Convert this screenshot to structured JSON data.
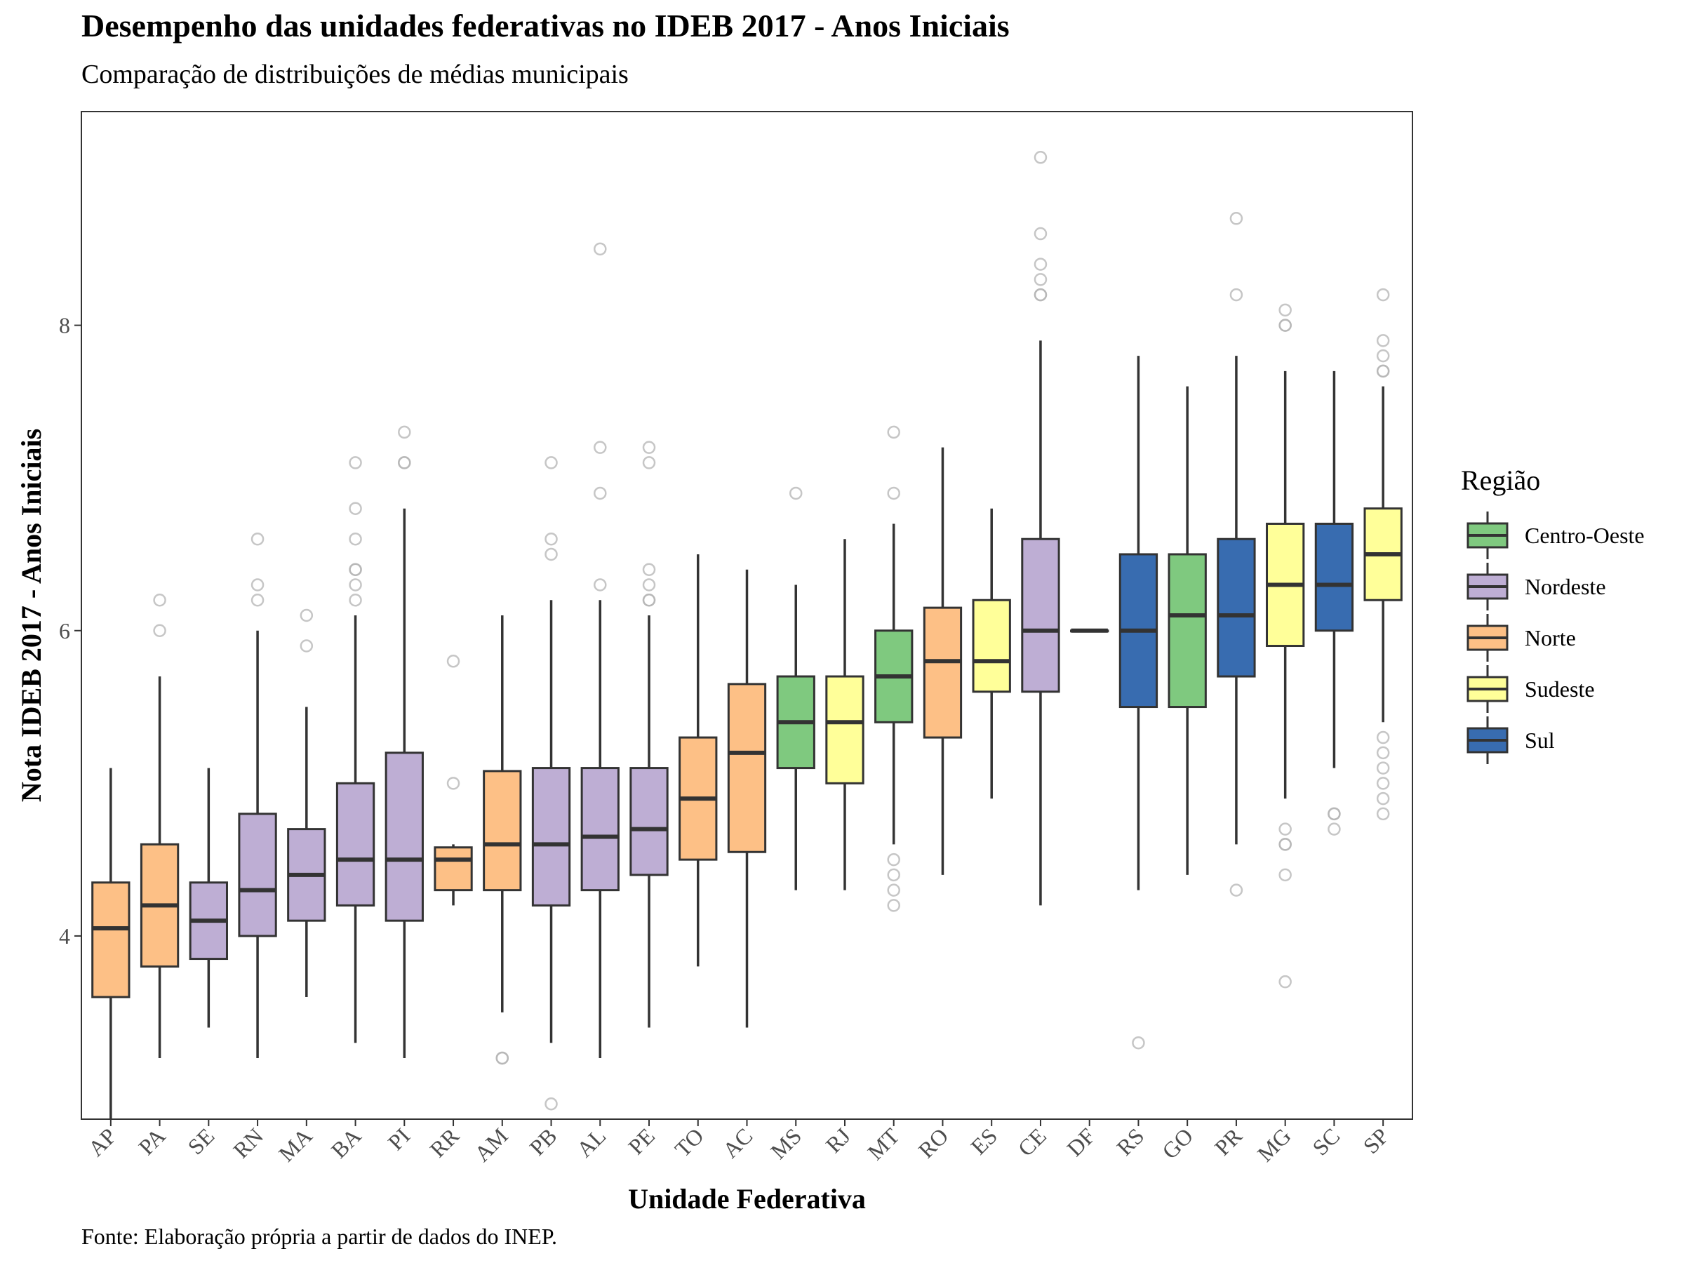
{
  "title": "Desempenho das unidades federativas no IDEB 2017 - Anos Iniciais",
  "subtitle": "Comparação de distribuições de médias municipais",
  "caption": "Fonte: Elaboração própria a partir de dados do INEP.",
  "chart_data": {
    "type": "boxplot",
    "xlabel": "Unidade Federativa",
    "ylabel": "Nota IDEB 2017 - Anos Iniciais",
    "ylim": [
      2.8,
      9.4
    ],
    "yticks": [
      4,
      6,
      8
    ],
    "grid": false,
    "legend": {
      "title": "Região",
      "position": "right",
      "items": [
        {
          "name": "Centro-Oeste",
          "color": "#7fc97f"
        },
        {
          "name": "Nordeste",
          "color": "#beaed4"
        },
        {
          "name": "Norte",
          "color": "#fdc086"
        },
        {
          "name": "Sudeste",
          "color": "#ffff99"
        },
        {
          "name": "Sul",
          "color": "#386cb0"
        }
      ]
    },
    "boxes": [
      {
        "uf": "AP",
        "region": "Norte",
        "lower_whisker": 2.8,
        "q1": 3.6,
        "median": 4.05,
        "q3": 4.35,
        "upper_whisker": 5.1,
        "outliers": []
      },
      {
        "uf": "PA",
        "region": "Norte",
        "lower_whisker": 3.2,
        "q1": 3.8,
        "median": 4.2,
        "q3": 4.6,
        "upper_whisker": 5.7,
        "outliers": [
          6.0,
          6.2
        ]
      },
      {
        "uf": "SE",
        "region": "Nordeste",
        "lower_whisker": 3.4,
        "q1": 3.85,
        "median": 4.1,
        "q3": 4.35,
        "upper_whisker": 5.1,
        "outliers": []
      },
      {
        "uf": "RN",
        "region": "Nordeste",
        "lower_whisker": 3.2,
        "q1": 4.0,
        "median": 4.3,
        "q3": 4.8,
        "upper_whisker": 6.0,
        "outliers": [
          6.2,
          6.3,
          6.6
        ]
      },
      {
        "uf": "MA",
        "region": "Nordeste",
        "lower_whisker": 3.6,
        "q1": 4.1,
        "median": 4.4,
        "q3": 4.7,
        "upper_whisker": 5.5,
        "outliers": [
          5.9,
          6.1
        ]
      },
      {
        "uf": "BA",
        "region": "Nordeste",
        "lower_whisker": 3.3,
        "q1": 4.2,
        "median": 4.5,
        "q3": 5.0,
        "upper_whisker": 6.1,
        "outliers": [
          6.2,
          6.3,
          6.4,
          6.4,
          6.6,
          6.8,
          7.1
        ]
      },
      {
        "uf": "PI",
        "region": "Nordeste",
        "lower_whisker": 3.2,
        "q1": 4.1,
        "median": 4.5,
        "q3": 5.2,
        "upper_whisker": 6.8,
        "outliers": [
          7.1,
          7.1,
          7.3
        ]
      },
      {
        "uf": "RR",
        "region": "Norte",
        "lower_whisker": 4.2,
        "q1": 4.3,
        "median": 4.5,
        "q3": 4.58,
        "upper_whisker": 4.6,
        "outliers": [
          5.0,
          5.8
        ]
      },
      {
        "uf": "AM",
        "region": "Norte",
        "lower_whisker": 3.5,
        "q1": 4.3,
        "median": 4.6,
        "q3": 5.08,
        "upper_whisker": 6.1,
        "outliers": [
          3.2,
          3.2
        ]
      },
      {
        "uf": "PB",
        "region": "Nordeste",
        "lower_whisker": 3.3,
        "q1": 4.2,
        "median": 4.6,
        "q3": 5.1,
        "upper_whisker": 6.2,
        "outliers": [
          2.9,
          6.5,
          6.6,
          7.1
        ]
      },
      {
        "uf": "AL",
        "region": "Nordeste",
        "lower_whisker": 3.2,
        "q1": 4.3,
        "median": 4.65,
        "q3": 5.1,
        "upper_whisker": 6.2,
        "outliers": [
          6.3,
          6.9,
          7.2,
          8.5
        ]
      },
      {
        "uf": "PE",
        "region": "Nordeste",
        "lower_whisker": 3.4,
        "q1": 4.4,
        "median": 4.7,
        "q3": 5.1,
        "upper_whisker": 6.1,
        "outliers": [
          6.2,
          6.2,
          6.3,
          6.4,
          7.1,
          7.2
        ]
      },
      {
        "uf": "TO",
        "region": "Norte",
        "lower_whisker": 3.8,
        "q1": 4.5,
        "median": 4.9,
        "q3": 5.3,
        "upper_whisker": 6.5,
        "outliers": []
      },
      {
        "uf": "AC",
        "region": "Norte",
        "lower_whisker": 3.4,
        "q1": 4.55,
        "median": 5.2,
        "q3": 5.65,
        "upper_whisker": 6.4,
        "outliers": []
      },
      {
        "uf": "MS",
        "region": "Centro-Oeste",
        "lower_whisker": 4.3,
        "q1": 5.1,
        "median": 5.4,
        "q3": 5.7,
        "upper_whisker": 6.3,
        "outliers": [
          6.9
        ]
      },
      {
        "uf": "RJ",
        "region": "Sudeste",
        "lower_whisker": 4.3,
        "q1": 5.0,
        "median": 5.4,
        "q3": 5.7,
        "upper_whisker": 6.6,
        "outliers": []
      },
      {
        "uf": "MT",
        "region": "Centro-Oeste",
        "lower_whisker": 4.6,
        "q1": 5.4,
        "median": 5.7,
        "q3": 6.0,
        "upper_whisker": 6.7,
        "outliers": [
          4.2,
          4.3,
          4.4,
          4.5,
          6.9,
          7.3
        ]
      },
      {
        "uf": "RO",
        "region": "Norte",
        "lower_whisker": 4.4,
        "q1": 5.3,
        "median": 5.8,
        "q3": 6.15,
        "upper_whisker": 7.2,
        "outliers": []
      },
      {
        "uf": "ES",
        "region": "Sudeste",
        "lower_whisker": 4.9,
        "q1": 5.6,
        "median": 5.8,
        "q3": 6.2,
        "upper_whisker": 6.8,
        "outliers": []
      },
      {
        "uf": "CE",
        "region": "Nordeste",
        "lower_whisker": 4.2,
        "q1": 5.6,
        "median": 6.0,
        "q3": 6.6,
        "upper_whisker": 7.9,
        "outliers": [
          8.2,
          8.2,
          8.3,
          8.4,
          8.6,
          9.1
        ]
      },
      {
        "uf": "DF",
        "region": "Centro-Oeste",
        "lower_whisker": 6.0,
        "q1": 6.0,
        "median": 6.0,
        "q3": 6.0,
        "upper_whisker": 6.0,
        "outliers": []
      },
      {
        "uf": "RS",
        "region": "Sul",
        "lower_whisker": 4.3,
        "q1": 5.5,
        "median": 6.0,
        "q3": 6.5,
        "upper_whisker": 7.8,
        "outliers": [
          3.3
        ]
      },
      {
        "uf": "GO",
        "region": "Centro-Oeste",
        "lower_whisker": 4.4,
        "q1": 5.5,
        "median": 6.1,
        "q3": 6.5,
        "upper_whisker": 7.6,
        "outliers": []
      },
      {
        "uf": "PR",
        "region": "Sul",
        "lower_whisker": 4.6,
        "q1": 5.7,
        "median": 6.1,
        "q3": 6.6,
        "upper_whisker": 7.8,
        "outliers": [
          4.3,
          8.2,
          8.7
        ]
      },
      {
        "uf": "MG",
        "region": "Sudeste",
        "lower_whisker": 4.9,
        "q1": 5.9,
        "median": 6.3,
        "q3": 6.7,
        "upper_whisker": 7.7,
        "outliers": [
          3.7,
          4.4,
          4.6,
          4.6,
          4.7,
          8.0,
          8.0,
          8.1
        ]
      },
      {
        "uf": "SC",
        "region": "Sul",
        "lower_whisker": 5.1,
        "q1": 6.0,
        "median": 6.3,
        "q3": 6.7,
        "upper_whisker": 7.7,
        "outliers": [
          4.7,
          4.8,
          4.8
        ]
      },
      {
        "uf": "SP",
        "region": "Sudeste",
        "lower_whisker": 5.4,
        "q1": 6.2,
        "median": 6.5,
        "q3": 6.8,
        "upper_whisker": 7.6,
        "outliers": [
          4.8,
          4.9,
          5.0,
          5.1,
          5.2,
          5.3,
          7.7,
          7.7,
          7.8,
          7.9,
          8.2
        ]
      }
    ]
  }
}
